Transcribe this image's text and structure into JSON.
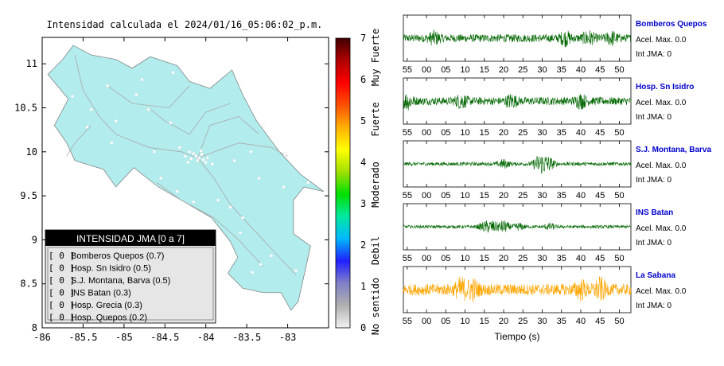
{
  "chart_data": [
    {
      "type": "scatter",
      "title": "Intensidad calculada el 2024/01/16_05:06:02_p.m.",
      "xlim": [
        -86,
        -82.5
      ],
      "ylim": [
        8,
        11.3
      ],
      "x_ticks": [
        "-86",
        "-85.5",
        "-85",
        "-84.5",
        "-84",
        "-83.5",
        "-83"
      ],
      "x_tick_values": [
        -86,
        -85.5,
        -85,
        -84.5,
        -84,
        -83.5,
        -83
      ],
      "y_ticks": [
        "8",
        "8.5",
        "9",
        "9.5",
        "10",
        "10.5",
        "11"
      ],
      "y_tick_values": [
        8,
        8.5,
        9,
        9.5,
        10,
        10.5,
        11
      ],
      "colors": {
        "land": "#b2ecec",
        "station": "#ffffff",
        "roads": "#aaaaaa"
      },
      "legend": {
        "title": "INTENSIDAD JMA [0 a 7]",
        "placement": "bottom-left",
        "entries": [
          {
            "value": "[ 0 ]",
            "label": "Bomberos Quepos (0.7)"
          },
          {
            "value": "[ 0 ]",
            "label": "Hosp. Sn Isidro (0.5)"
          },
          {
            "value": "[ 0 ]",
            "label": "S.J. Montana, Barva (0.5)"
          },
          {
            "value": "[ 0 ]",
            "label": "INS Batan (0.3)"
          },
          {
            "value": "[ 0 ]",
            "label": "Hosp. Grecia (0.3)"
          },
          {
            "value": "[ 0 ]",
            "label": "Hosp. Quepos (0.2)"
          }
        ]
      },
      "stations": [
        [
          -84.08,
          9.93
        ],
        [
          -84.12,
          9.95
        ],
        [
          -84.03,
          9.91
        ],
        [
          -84.15,
          9.98
        ],
        [
          -84.2,
          10.0
        ],
        [
          -84.05,
          9.97
        ],
        [
          -83.92,
          9.86
        ],
        [
          -84.32,
          10.05
        ],
        [
          -84.1,
          9.9
        ],
        [
          -84.25,
          9.95
        ],
        [
          -83.98,
          9.93
        ],
        [
          -84.18,
          9.92
        ],
        [
          -84.06,
          10.01
        ],
        [
          -84.22,
          9.88
        ],
        [
          -84.0,
          9.88
        ],
        [
          -85.63,
          10.63
        ],
        [
          -85.45,
          10.28
        ],
        [
          -85.2,
          10.75
        ],
        [
          -84.85,
          10.65
        ],
        [
          -84.7,
          10.48
        ],
        [
          -84.43,
          10.33
        ],
        [
          -85.15,
          10.1
        ],
        [
          -83.03,
          9.98
        ],
        [
          -83.3,
          10.3
        ],
        [
          -84.4,
          10.9
        ],
        [
          -84.15,
          9.43
        ],
        [
          -83.7,
          9.37
        ],
        [
          -83.2,
          8.82
        ],
        [
          -82.9,
          8.65
        ],
        [
          -83.58,
          9.08
        ],
        [
          -83.05,
          9.6
        ],
        [
          -84.55,
          9.7
        ],
        [
          -83.43,
          8.63
        ],
        [
          -83.33,
          8.72
        ],
        [
          -84.63,
          10.0
        ],
        [
          -85.4,
          10.48
        ],
        [
          -83.65,
          9.9
        ],
        [
          -83.35,
          9.7
        ],
        [
          -84.78,
          10.82
        ],
        [
          -85.1,
          10.35
        ],
        [
          -84.35,
          9.55
        ],
        [
          -83.85,
          9.45
        ],
        [
          -82.75,
          9.65
        ],
        [
          -83.45,
          10.0
        ],
        [
          -83.55,
          9.25
        ]
      ]
    },
    {
      "type": "colorbar",
      "ticks": [
        "0",
        "1",
        "2",
        "3",
        "4",
        "5",
        "6",
        "7"
      ],
      "tick_values": [
        0,
        1,
        2,
        3,
        4,
        5,
        6,
        7
      ],
      "range": [
        0,
        7
      ],
      "labels": [
        "No sentido",
        "Debil",
        "Moderado",
        "Fuerte",
        "Muy Fuerte"
      ],
      "colors": [
        "#f2f2f2",
        "#b0b0b0",
        "#8080c8",
        "#2020ff",
        "#00b8ff",
        "#00e8a0",
        "#00e000",
        "#a0e000",
        "#ffff00",
        "#ffb000",
        "#ff5000",
        "#ff0000",
        "#b00000",
        "#400000"
      ]
    },
    {
      "type": "line",
      "xlabel": "Tiempo (s)",
      "x_ticks": [
        "55",
        "00",
        "05",
        "10",
        "15",
        "20",
        "25",
        "30",
        "35",
        "40",
        "45",
        "50"
      ],
      "x_tick_values": [
        55,
        60,
        65,
        70,
        75,
        80,
        85,
        90,
        95,
        100,
        105,
        110
      ],
      "xlim": [
        54,
        113
      ],
      "series": [
        {
          "name": "Bomberos Quepos",
          "accel": "Acel. Max. 0.0",
          "int": "Int JMA: 0",
          "color": "#006600",
          "amplitude": 0.55,
          "events": [
            [
              62,
              1.2
            ],
            [
              96,
              1.3
            ],
            [
              102,
              1.4
            ],
            [
              108,
              1.2
            ]
          ]
        },
        {
          "name": "Hosp. Sn Isidro",
          "accel": "Acel. Max. 0.0",
          "int": "Int JMA: 0",
          "color": "#006600",
          "amplitude": 0.55,
          "events": [
            [
              55,
              1.6
            ],
            [
              69,
              1.3
            ],
            [
              82,
              1.2
            ],
            [
              100,
              1.3
            ]
          ]
        },
        {
          "name": "S.J. Montana, Barva",
          "accel": "Acel. Max. 0.0",
          "int": "Int JMA: 0",
          "color": "#006600",
          "amplitude": 0.25,
          "events": [
            [
              80,
              2.0
            ],
            [
              89,
              3.4
            ],
            [
              90.5,
              3.0
            ],
            [
              92,
              2.2
            ]
          ]
        },
        {
          "name": "INS Batan",
          "accel": "Acel. Max. 0.0",
          "int": "Int JMA: 0",
          "color": "#006600",
          "amplitude": 0.22,
          "events": [
            [
              77,
              3.0
            ],
            [
              80,
              3.4
            ],
            [
              75,
              2.3
            ],
            [
              84,
              1.8
            ],
            [
              92,
              1.6
            ]
          ]
        },
        {
          "name": "La Sabana",
          "accel": "Acel. Max. 0.0",
          "int": "Int JMA: 0",
          "color": "#ffa500",
          "amplitude": 0.8,
          "events": [
            [
              69,
              1.5
            ],
            [
              72,
              1.3
            ],
            [
              105,
              1.4
            ],
            [
              100,
              1.2
            ]
          ]
        }
      ]
    }
  ]
}
